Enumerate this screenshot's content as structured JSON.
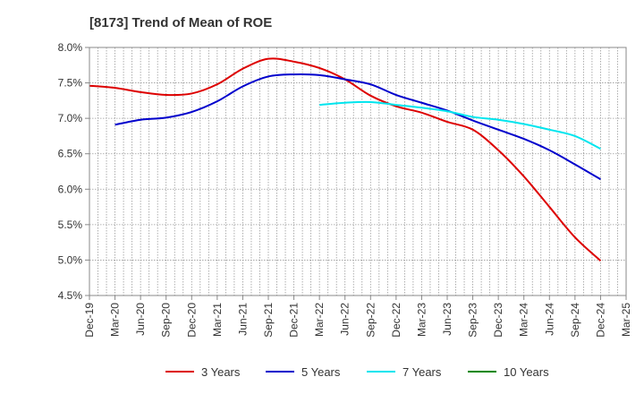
{
  "chart_data": {
    "type": "line",
    "title": "[8173]  Trend of Mean of ROE",
    "xlabel": "",
    "ylabel": "",
    "x_ticks": [
      "Dec-19",
      "Mar-20",
      "Jun-20",
      "Sep-20",
      "Dec-20",
      "Mar-21",
      "Jun-21",
      "Sep-21",
      "Dec-21",
      "Mar-22",
      "Jun-22",
      "Sep-22",
      "Dec-22",
      "Mar-23",
      "Jun-23",
      "Sep-23",
      "Dec-23",
      "Mar-24",
      "Jun-24",
      "Sep-24",
      "Dec-24",
      "Mar-25"
    ],
    "y_ticks": [
      "4.5%",
      "5.0%",
      "5.5%",
      "6.0%",
      "6.5%",
      "7.0%",
      "7.5%",
      "8.0%"
    ],
    "ylim": [
      4.5,
      8.0
    ],
    "grid": true,
    "legend_position": "bottom",
    "series": [
      {
        "name": "3 Years",
        "color": "#dd0000",
        "points": [
          [
            "Dec-19",
            7.46
          ],
          [
            "Mar-20",
            7.43
          ],
          [
            "Jun-20",
            7.37
          ],
          [
            "Sep-20",
            7.33
          ],
          [
            "Dec-20",
            7.35
          ],
          [
            "Mar-21",
            7.48
          ],
          [
            "Jun-21",
            7.7
          ],
          [
            "Sep-21",
            7.84
          ],
          [
            "Dec-21",
            7.8
          ],
          [
            "Mar-22",
            7.71
          ],
          [
            "Jun-22",
            7.55
          ],
          [
            "Sep-22",
            7.32
          ],
          [
            "Dec-22",
            7.17
          ],
          [
            "Mar-23",
            7.08
          ],
          [
            "Jun-23",
            6.95
          ],
          [
            "Sep-23",
            6.84
          ],
          [
            "Dec-23",
            6.55
          ],
          [
            "Mar-24",
            6.18
          ],
          [
            "Jun-24",
            5.75
          ],
          [
            "Sep-24",
            5.32
          ],
          [
            "Dec-24",
            4.99
          ]
        ]
      },
      {
        "name": "5 Years",
        "color": "#0000cc",
        "points": [
          [
            "Mar-20",
            6.91
          ],
          [
            "Jun-20",
            6.98
          ],
          [
            "Sep-20",
            7.01
          ],
          [
            "Dec-20",
            7.09
          ],
          [
            "Mar-21",
            7.24
          ],
          [
            "Jun-21",
            7.45
          ],
          [
            "Sep-21",
            7.59
          ],
          [
            "Dec-21",
            7.62
          ],
          [
            "Mar-22",
            7.61
          ],
          [
            "Jun-22",
            7.55
          ],
          [
            "Sep-22",
            7.48
          ],
          [
            "Dec-22",
            7.33
          ],
          [
            "Mar-23",
            7.22
          ],
          [
            "Jun-23",
            7.11
          ],
          [
            "Sep-23",
            6.97
          ],
          [
            "Dec-23",
            6.84
          ],
          [
            "Mar-24",
            6.71
          ],
          [
            "Jun-24",
            6.55
          ],
          [
            "Sep-24",
            6.35
          ],
          [
            "Dec-24",
            6.14
          ]
        ]
      },
      {
        "name": "7 Years",
        "color": "#00e5ee",
        "points": [
          [
            "Mar-22",
            7.19
          ],
          [
            "Jun-22",
            7.22
          ],
          [
            "Sep-22",
            7.23
          ],
          [
            "Dec-22",
            7.19
          ],
          [
            "Mar-23",
            7.15
          ],
          [
            "Jun-23",
            7.1
          ],
          [
            "Sep-23",
            7.02
          ],
          [
            "Dec-23",
            6.98
          ],
          [
            "Mar-24",
            6.92
          ],
          [
            "Jun-24",
            6.84
          ],
          [
            "Sep-24",
            6.75
          ],
          [
            "Dec-24",
            6.57
          ]
        ]
      },
      {
        "name": "10 Years",
        "color": "#008800",
        "points": []
      }
    ]
  }
}
